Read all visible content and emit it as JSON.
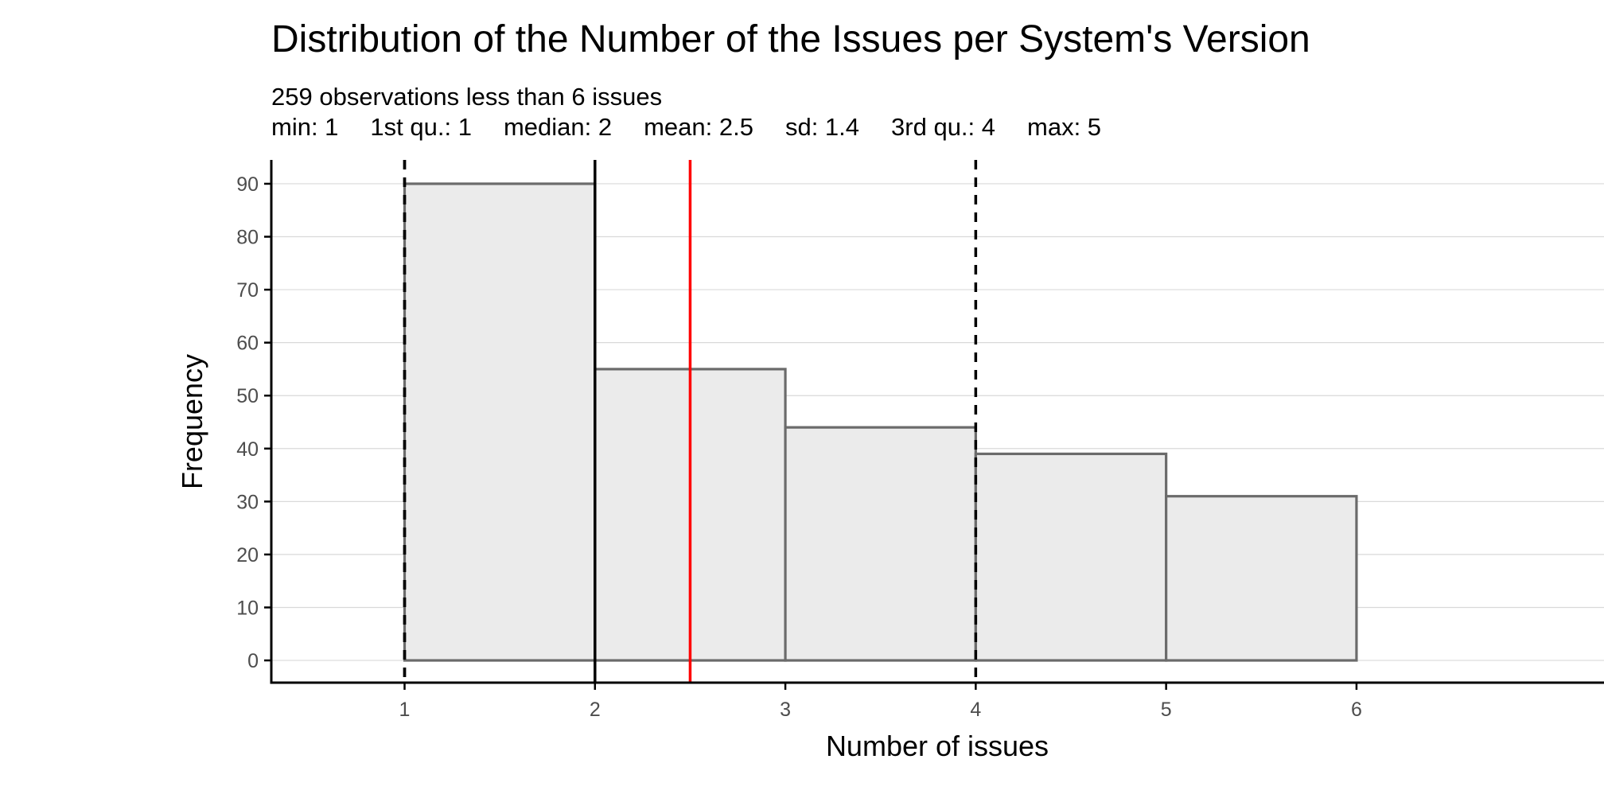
{
  "chart_data": {
    "type": "bar",
    "title": "Distribution of the Number of the Issues per System's Version",
    "subtitle": "259 observations less than 6 issues",
    "stats": [
      {
        "label": "min",
        "text": "min: 1",
        "value": 1
      },
      {
        "label": "1st qu.",
        "text": "1st qu.: 1",
        "value": 1
      },
      {
        "label": "median",
        "text": "median: 2",
        "value": 2
      },
      {
        "label": "mean",
        "text": "mean: 2.5",
        "value": 2.5
      },
      {
        "label": "sd",
        "text": "sd: 1.4",
        "value": 1.4
      },
      {
        "label": "3rd qu.",
        "text": "3rd qu.: 4",
        "value": 4
      },
      {
        "label": "max",
        "text": "max: 5",
        "value": 5
      }
    ],
    "xlabel": "Number of issues",
    "ylabel": "Frequency",
    "bins": [
      {
        "start": 1,
        "end": 2,
        "count": 90
      },
      {
        "start": 2,
        "end": 3,
        "count": 55
      },
      {
        "start": 3,
        "end": 4,
        "count": 44
      },
      {
        "start": 4,
        "end": 5,
        "count": 39
      },
      {
        "start": 5,
        "end": 6,
        "count": 31
      },
      {
        "start": 6,
        "end": 7,
        "count": 0
      }
    ],
    "xlim": [
      0.3,
      7.3
    ],
    "ylim": [
      -4.2,
      94.5
    ],
    "x_ticks": [
      1,
      2,
      3,
      4,
      5,
      6
    ],
    "y_ticks": [
      0,
      10,
      20,
      30,
      40,
      50,
      60,
      70,
      80,
      90
    ],
    "reference_lines": [
      {
        "name": "min",
        "x": 1,
        "style": "dashed",
        "color": "#000000"
      },
      {
        "name": "1st-quartile",
        "x": 1,
        "style": "dashed",
        "color": "#000000"
      },
      {
        "name": "median",
        "x": 2,
        "style": "solid",
        "color": "#000000"
      },
      {
        "name": "mean",
        "x": 2.5,
        "style": "solid",
        "color": "#ff0000"
      },
      {
        "name": "3rd-quartile",
        "x": 4,
        "style": "dashed",
        "color": "#000000"
      }
    ],
    "grid": "horizontal-major",
    "legend": "none",
    "colors": {
      "bar_fill": "#ebebeb",
      "bar_outline": "#6b6b6b",
      "gridline": "#d9d9d9",
      "axis": "#000000",
      "mean_line": "#ff0000"
    }
  }
}
